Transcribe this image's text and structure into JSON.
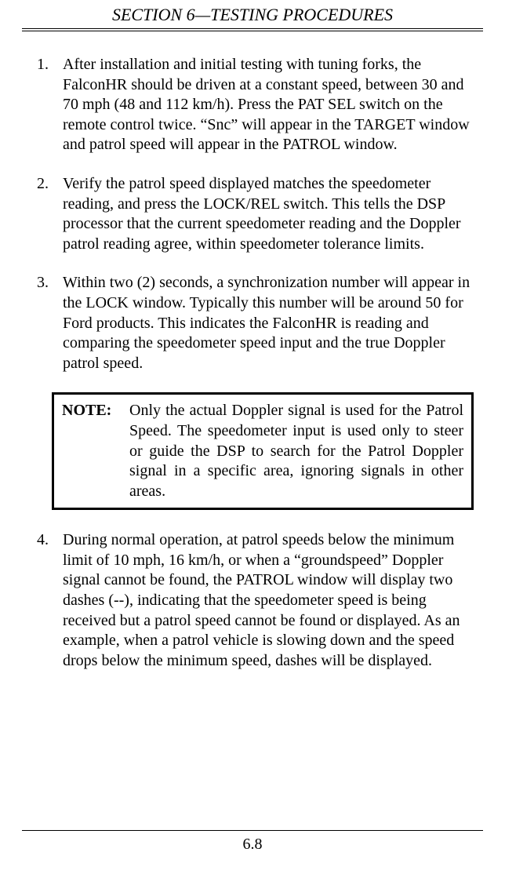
{
  "header": {
    "title": "SECTION 6—TESTING PROCEDURES"
  },
  "items": [
    {
      "num": "1.",
      "text": "After installation and initial testing with tuning forks, the FalconHR should be driven at a constant speed, between 30 and 70 mph (48 and 112 km/h).  Press the PAT SEL switch on the remote control twice.  “Snc” will appear in the TARGET window and patrol speed will appear in the PATROL window."
    },
    {
      "num": "2.",
      "text": "Verify the patrol speed displayed matches the speedometer reading, and press the LOCK/REL switch.  This tells the DSP processor that the current speedometer reading and the Doppler patrol reading agree, within speedometer tolerance limits."
    },
    {
      "num": "3.",
      "text": "Within two (2) seconds, a synchronization number will appear in the LOCK window. Typically this number will be around 50 for Ford products.  This indicates the FalconHR is reading and comparing the speedometer speed input and the true Doppler patrol speed."
    },
    {
      "num": "4.",
      "text": "During normal operation, at patrol speeds below the minimum limit of 10 mph, 16 km/h, or when a “groundspeed” Doppler signal cannot be found, the PATROL window will display two dashes (--), indicating that the speedometer speed is being received but a patrol speed cannot be found or displayed.  As an example, when a patrol vehicle is slowing down and the speed drops below the minimum speed, dashes will be displayed."
    }
  ],
  "note": {
    "label": "NOTE:",
    "text": "Only the actual Doppler signal is used for the Patrol Speed.  The speedometer input is used only to steer or guide the DSP to search for the Patrol Doppler signal in a specific area, ignoring signals in other areas."
  },
  "footer": {
    "page": "6.8"
  }
}
